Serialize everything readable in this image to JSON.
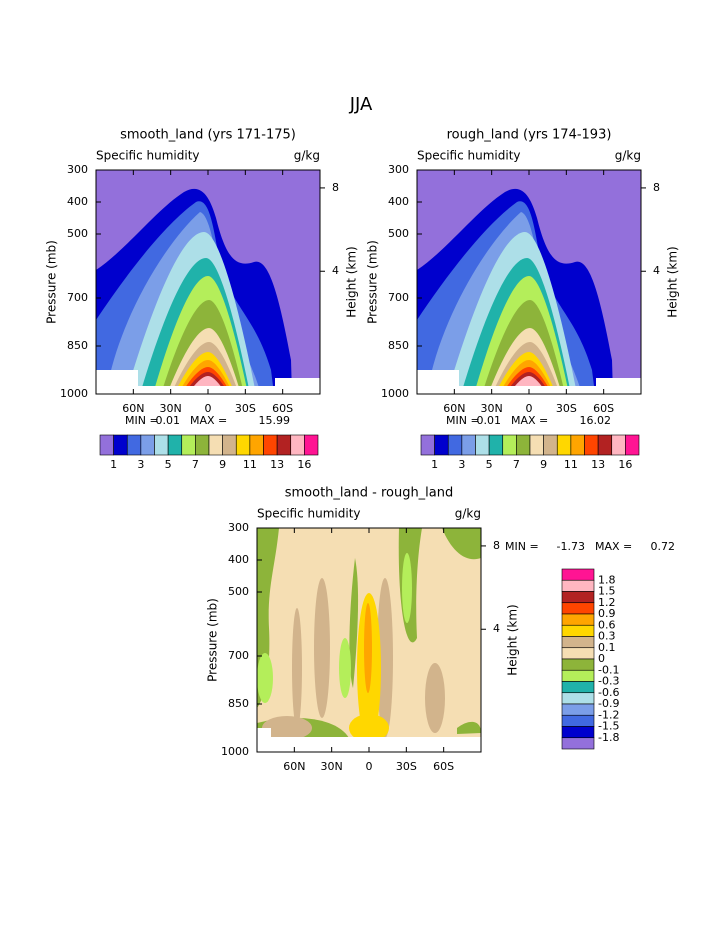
{
  "figure_title": "JJA",
  "chart_data": [
    {
      "type": "contour",
      "title": "smooth_land (yrs 171-175)",
      "subtitle_left": "Specific humidity",
      "subtitle_right": "g/kg",
      "y_label": "Pressure (mb)",
      "y2_label": "Height (km)",
      "ylim": [
        1000,
        300
      ],
      "yticks": [
        300,
        400,
        500,
        700,
        850,
        1000
      ],
      "y2ticks": [
        4,
        8
      ],
      "xlim": [
        90,
        -90
      ],
      "xticks": [
        {
          "value": 60,
          "label": "60N"
        },
        {
          "value": 30,
          "label": "30N"
        },
        0,
        {
          "value": -30,
          "label": "30S"
        },
        {
          "value": -60,
          "label": "60S"
        }
      ],
      "min_label": "MIN =",
      "min": 0.01,
      "max_label": "MAX =",
      "max": 15.99,
      "colorbar": {
        "orientation": "horizontal",
        "colors": [
          "#9370db",
          "#0000cd",
          "#4169e1",
          "#7b9ee8",
          "#addfe8",
          "#20b2aa",
          "#b4ee5a",
          "#8db43a",
          "#f5deb3",
          "#d2b48c",
          "#ffd700",
          "#ffa500",
          "#ff4500",
          "#b22222",
          "#ffb6c1",
          "#ff1493"
        ],
        "labels": [
          1,
          3,
          5,
          7,
          9,
          11,
          13,
          16
        ]
      }
    },
    {
      "type": "contour",
      "title": "rough_land (yrs 174-193)",
      "subtitle_left": "Specific humidity",
      "subtitle_right": "g/kg",
      "y_label": "Pressure (mb)",
      "y2_label": "Height (km)",
      "ylim": [
        1000,
        300
      ],
      "yticks": [
        300,
        400,
        500,
        700,
        850,
        1000
      ],
      "y2ticks": [
        4,
        8
      ],
      "xlim": [
        90,
        -90
      ],
      "xticks": [
        {
          "value": 60,
          "label": "60N"
        },
        {
          "value": 30,
          "label": "30N"
        },
        0,
        {
          "value": -30,
          "label": "30S"
        },
        {
          "value": -60,
          "label": "60S"
        }
      ],
      "min_label": "MIN =",
      "min": 0.01,
      "max_label": "MAX =",
      "max": 16.02,
      "colorbar": {
        "orientation": "horizontal",
        "colors": [
          "#9370db",
          "#0000cd",
          "#4169e1",
          "#7b9ee8",
          "#addfe8",
          "#20b2aa",
          "#b4ee5a",
          "#8db43a",
          "#f5deb3",
          "#d2b48c",
          "#ffd700",
          "#ffa500",
          "#ff4500",
          "#b22222",
          "#ffb6c1",
          "#ff1493"
        ],
        "labels": [
          1,
          3,
          5,
          7,
          9,
          11,
          13,
          16
        ]
      }
    },
    {
      "type": "contour-difference",
      "title": "smooth_land - rough_land",
      "subtitle_left": "Specific humidity",
      "subtitle_right": "g/kg",
      "y_label": "Pressure (mb)",
      "y2_label": "Height (km)",
      "ylim": [
        1000,
        300
      ],
      "yticks": [
        300,
        400,
        500,
        700,
        850,
        1000
      ],
      "y2ticks": [
        4,
        8
      ],
      "xlim": [
        90,
        -90
      ],
      "xticks": [
        {
          "value": 60,
          "label": "60N"
        },
        {
          "value": 30,
          "label": "30N"
        },
        0,
        {
          "value": -30,
          "label": "30S"
        },
        {
          "value": -60,
          "label": "60S"
        }
      ],
      "min_label": "MIN =",
      "min": -1.73,
      "max_label": "MAX =",
      "max": 0.72,
      "colorbar": {
        "orientation": "vertical",
        "colors": [
          "#ff1493",
          "#ffb6c1",
          "#b22222",
          "#ff4500",
          "#ffa500",
          "#ffd700",
          "#d2b48c",
          "#f5deb3",
          "#8db43a",
          "#b4ee5a",
          "#20b2aa",
          "#addfe8",
          "#7b9ee8",
          "#4169e1",
          "#0000cd",
          "#9370db"
        ],
        "labels": [
          1.8,
          1.5,
          1.2,
          0.9,
          0.6,
          0.3,
          0.1,
          0,
          -0.1,
          -0.3,
          -0.6,
          -0.9,
          -1.2,
          -1.5,
          -1.8
        ]
      }
    }
  ]
}
